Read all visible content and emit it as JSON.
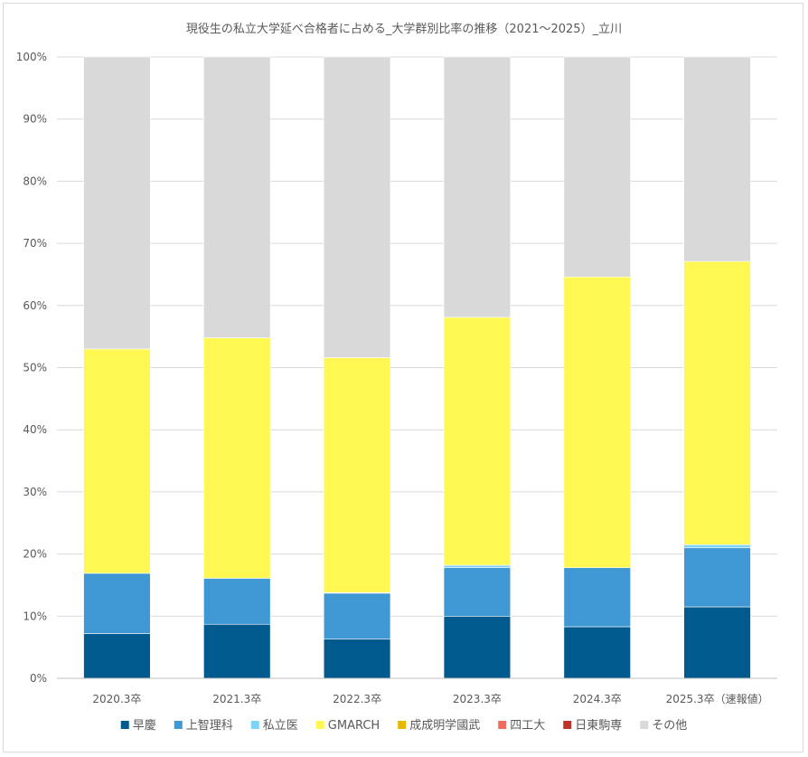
{
  "chart_data": {
    "type": "bar",
    "stacked": true,
    "title": "現役生の私立大学延べ合格者に占める_大学群別比率の推移（2021～2025）_立川",
    "categories": [
      "2020.3卒",
      "2021.3卒",
      "2022.3卒",
      "2023.3卒",
      "2024.3卒",
      "2025.3卒（速報値）"
    ],
    "y_ticks": [
      "0%",
      "10%",
      "20%",
      "30%",
      "40%",
      "50%",
      "60%",
      "70%",
      "80%",
      "90%",
      "100%"
    ],
    "ylim": [
      0,
      100
    ],
    "grid": true,
    "legend_position": "bottom",
    "series": [
      {
        "name": "早慶",
        "color": "#005a8e",
        "values": [
          7.2,
          8.7,
          6.3,
          10.0,
          8.3,
          11.5
        ]
      },
      {
        "name": "上智理科",
        "color": "#3f97d3",
        "values": [
          9.7,
          7.4,
          7.4,
          7.8,
          9.5,
          9.5
        ]
      },
      {
        "name": "私立医",
        "color": "#7fd3f7",
        "values": [
          0.0,
          0.0,
          0.1,
          0.4,
          0.0,
          0.5
        ]
      },
      {
        "name": "GMARCH",
        "color": "#fff852",
        "values": [
          36.1,
          38.7,
          37.8,
          39.9,
          46.8,
          45.6
        ]
      },
      {
        "name": "成成明学國武",
        "color": "#e6b800",
        "values": [
          0,
          0,
          0,
          0,
          0,
          0
        ]
      },
      {
        "name": "四工大",
        "color": "#f06b5e",
        "values": [
          0,
          0,
          0,
          0,
          0,
          0
        ]
      },
      {
        "name": "日東駒専",
        "color": "#c0312b",
        "values": [
          0,
          0,
          0,
          0,
          0,
          0
        ]
      },
      {
        "name": "その他",
        "color": "#d9d9d9",
        "values": [
          47.0,
          45.2,
          48.4,
          41.9,
          35.4,
          32.9
        ]
      }
    ]
  }
}
